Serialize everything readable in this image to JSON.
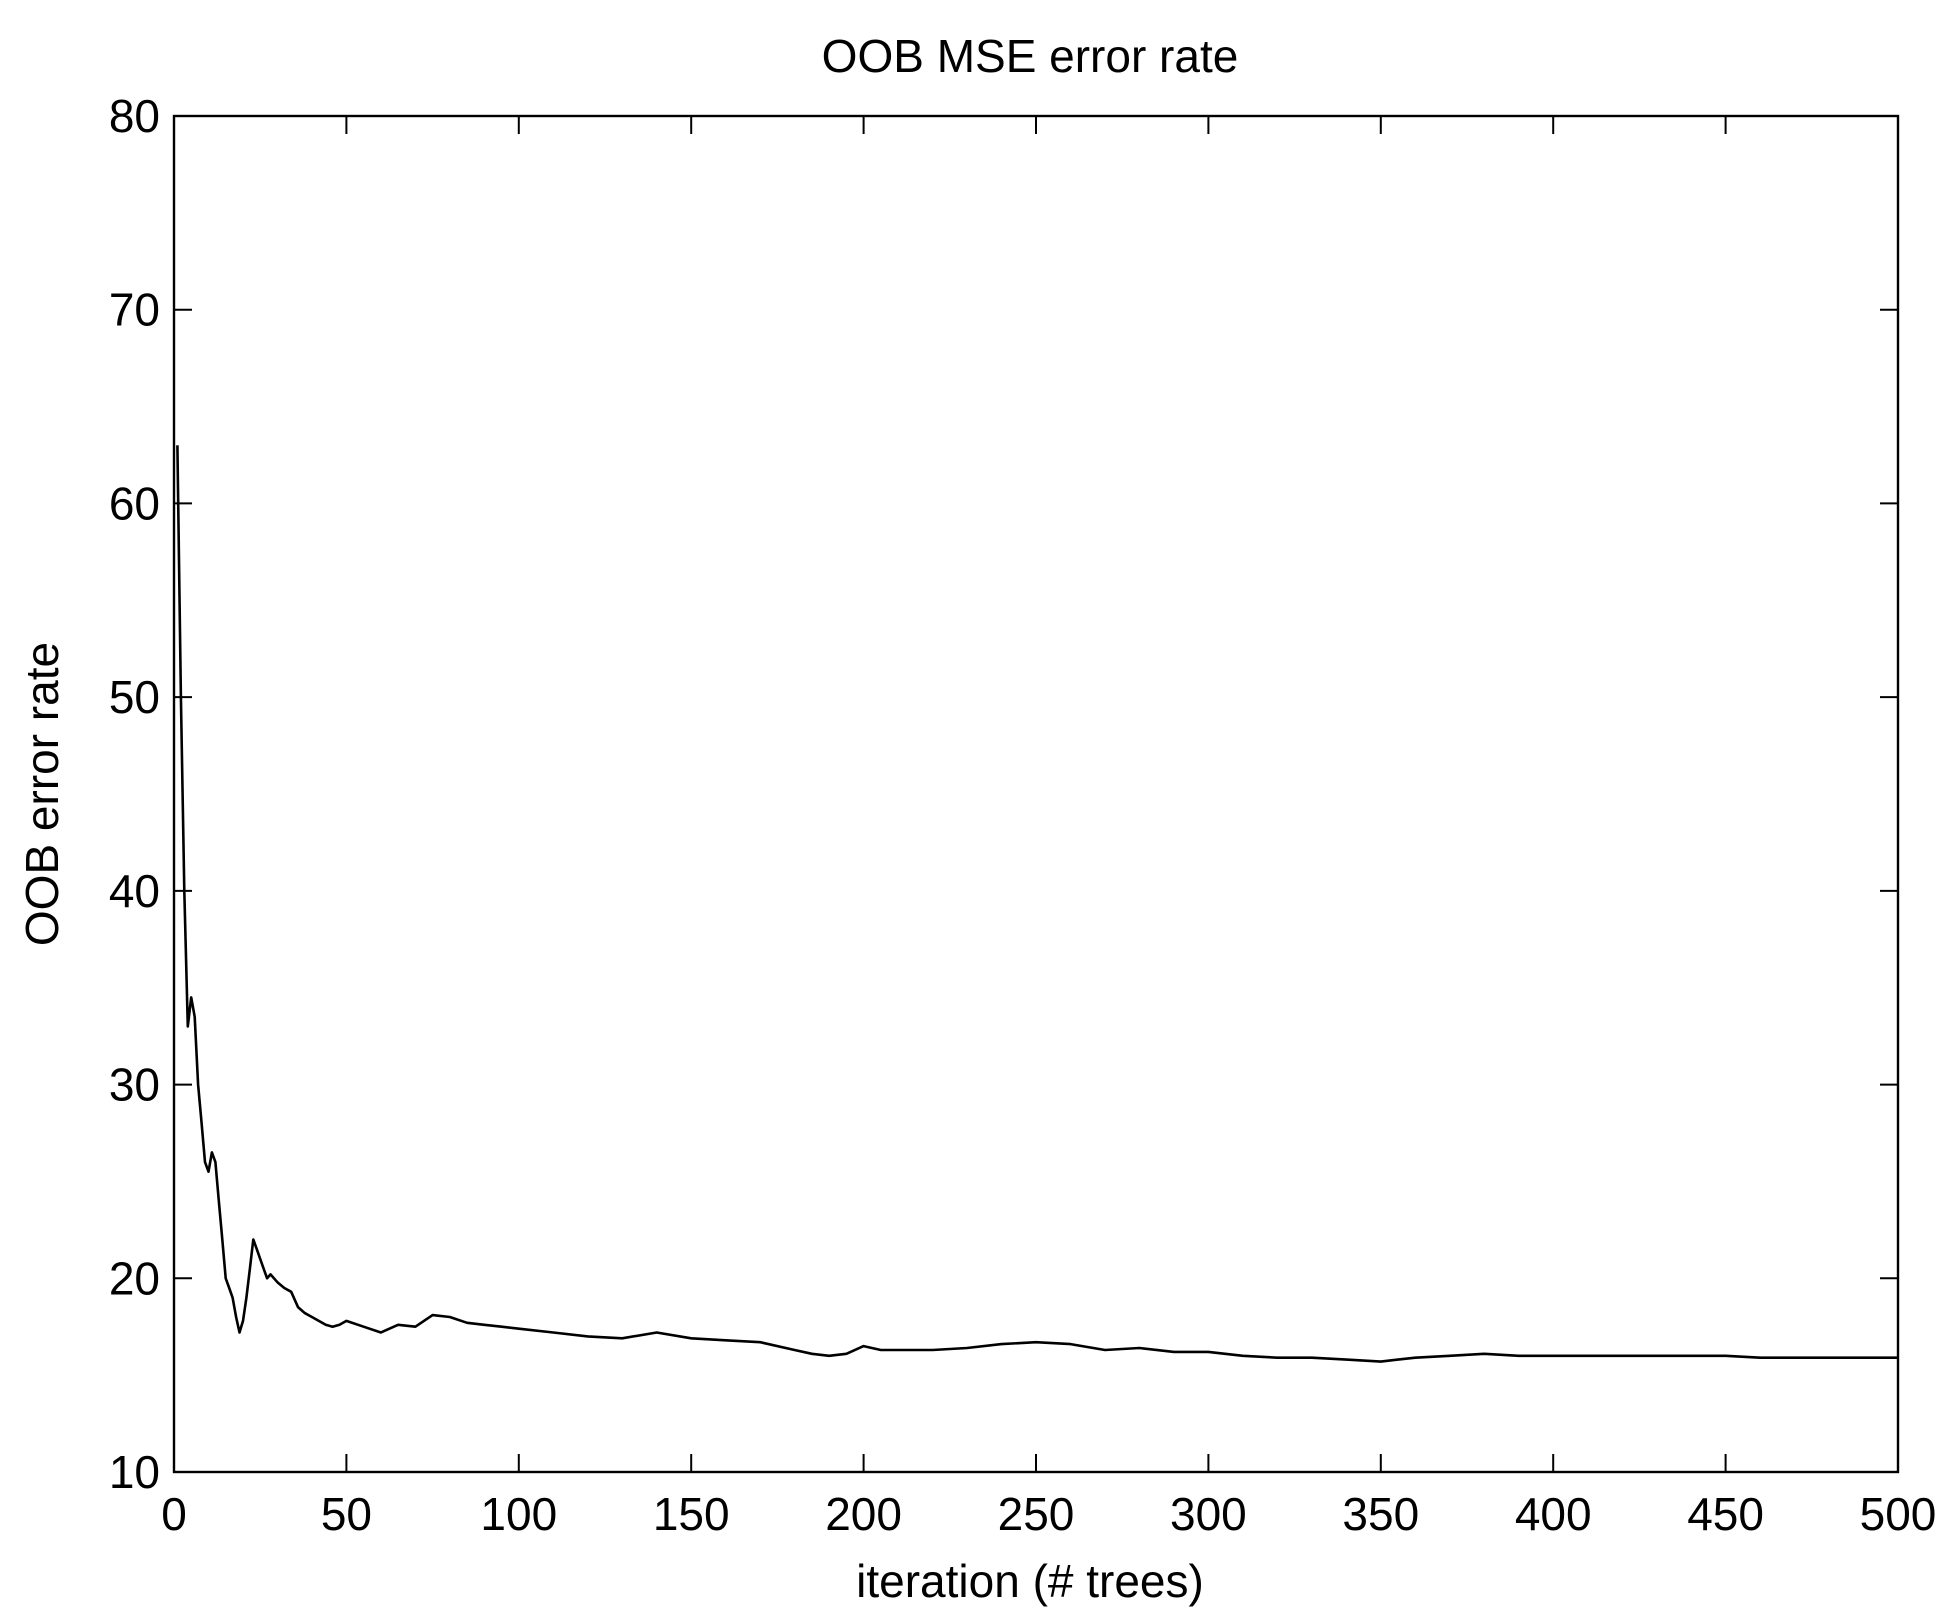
{
  "chart_data": {
    "type": "line",
    "title": "OOB MSE error rate",
    "xlabel": "iteration (# trees)",
    "ylabel": "OOB error rate",
    "xlim": [
      0,
      500
    ],
    "ylim": [
      10,
      80
    ],
    "xticks": [
      0,
      50,
      100,
      150,
      200,
      250,
      300,
      350,
      400,
      450,
      500
    ],
    "yticks": [
      10,
      20,
      30,
      40,
      50,
      60,
      70,
      80
    ],
    "grid": false,
    "line_color": "#000000",
    "series": [
      {
        "x": [
          1,
          2,
          3,
          4,
          5,
          6,
          7,
          8,
          9,
          10,
          11,
          12,
          13,
          14,
          15,
          16,
          17,
          18,
          19,
          20,
          21,
          22,
          23,
          24,
          25,
          26,
          27,
          28,
          30,
          32,
          34,
          36,
          38,
          40,
          42,
          44,
          46,
          48,
          50,
          55,
          60,
          65,
          70,
          75,
          80,
          85,
          90,
          95,
          100,
          110,
          120,
          130,
          140,
          150,
          160,
          170,
          180,
          185,
          190,
          195,
          200,
          205,
          210,
          220,
          230,
          240,
          250,
          260,
          270,
          280,
          290,
          300,
          310,
          320,
          330,
          340,
          350,
          355,
          360,
          370,
          380,
          390,
          400,
          410,
          420,
          430,
          440,
          450,
          460,
          470,
          480,
          490,
          500
        ],
        "values": [
          63,
          50,
          40,
          33,
          34.5,
          33.5,
          30,
          28,
          26,
          25.5,
          26.5,
          26,
          24,
          22,
          20,
          19.5,
          19,
          18,
          17.2,
          17.8,
          19,
          20.5,
          22,
          21.5,
          21,
          20.5,
          20,
          20.2,
          19.8,
          19.5,
          19.3,
          18.5,
          18.2,
          18.0,
          17.8,
          17.6,
          17.5,
          17.6,
          17.8,
          17.5,
          17.2,
          17.6,
          17.5,
          18.1,
          18.0,
          17.7,
          17.6,
          17.5,
          17.4,
          17.2,
          17.0,
          16.9,
          17.2,
          16.9,
          16.8,
          16.7,
          16.3,
          16.1,
          16.0,
          16.1,
          16.5,
          16.3,
          16.3,
          16.3,
          16.4,
          16.6,
          16.7,
          16.6,
          16.3,
          16.4,
          16.2,
          16.2,
          16.0,
          15.9,
          15.9,
          15.8,
          15.7,
          15.8,
          15.9,
          16.0,
          16.1,
          16.0,
          16.0,
          16.0,
          16.0,
          16.0,
          16.0,
          16.0,
          15.9,
          15.9,
          15.9,
          15.9,
          15.9
        ]
      }
    ]
  }
}
